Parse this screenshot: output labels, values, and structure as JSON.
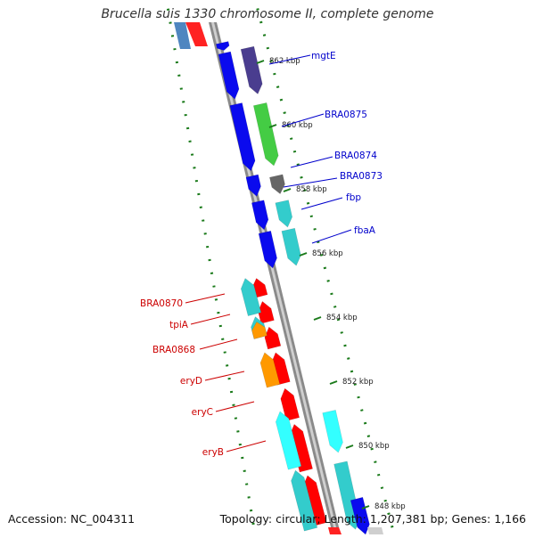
{
  "title": "Brucella suis 1330 chromosome II, complete genome",
  "accession": "Accession: NC_004311",
  "topology": "Topology: circular; Length: 1,207,381 bp; Genes: 1,166",
  "colors": {
    "forward_label": "#0000cc",
    "reverse_label": "#cc0000",
    "tick_label": "#222222",
    "dotted_ring": "#1a7a1a",
    "backbone": "#888888"
  },
  "scale_ticks": [
    {
      "label": "862 kbp"
    },
    {
      "label": "860 kbp"
    },
    {
      "label": "858 kbp"
    },
    {
      "label": "856 kbp"
    },
    {
      "label": "854 kbp"
    },
    {
      "label": "852 kbp"
    },
    {
      "label": "850 kbp"
    },
    {
      "label": "848 kbp"
    }
  ],
  "genes_forward": [
    {
      "label": "mgtE"
    },
    {
      "label": "BRA0875"
    },
    {
      "label": "BRA0874"
    },
    {
      "label": "BRA0873"
    },
    {
      "label": "fbp"
    },
    {
      "label": "fbaA"
    }
  ],
  "genes_reverse": [
    {
      "label": "BRA0870"
    },
    {
      "label": "tpiA"
    },
    {
      "label": "BRA0868"
    },
    {
      "label": "eryD"
    },
    {
      "label": "eryC"
    },
    {
      "label": "eryB"
    }
  ]
}
